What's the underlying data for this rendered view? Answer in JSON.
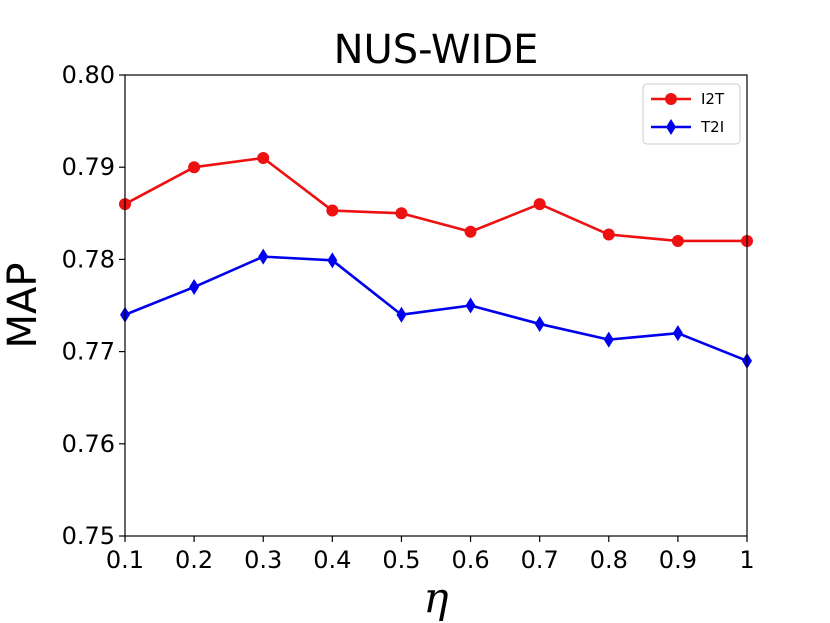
{
  "chart_data": {
    "type": "line",
    "title": "NUS-WIDE",
    "xlabel": "η",
    "ylabel": "MAP",
    "x": [
      0.1,
      0.2,
      0.3,
      0.4,
      0.5,
      0.6,
      0.7,
      0.8,
      0.9,
      1.0
    ],
    "xticks": [
      "0.1",
      "0.2",
      "0.3",
      "0.4",
      "0.5",
      "0.6",
      "0.7",
      "0.8",
      "0.9",
      "1"
    ],
    "yticks": [
      "0.75",
      "0.76",
      "0.77",
      "0.78",
      "0.79",
      "0.80"
    ],
    "xlim": [
      0.1,
      1.0
    ],
    "ylim": [
      0.75,
      0.8
    ],
    "grid": false,
    "legend_position": "top-right",
    "series": [
      {
        "name": "I2T",
        "color": "#ee1111",
        "marker": "circle",
        "values": [
          0.786,
          0.79,
          0.791,
          0.7853,
          0.785,
          0.783,
          0.786,
          0.7827,
          0.782,
          0.782
        ]
      },
      {
        "name": "T2I",
        "color": "#0000ee",
        "marker": "diamond",
        "values": [
          0.774,
          0.777,
          0.7803,
          0.7799,
          0.774,
          0.775,
          0.773,
          0.7713,
          0.772,
          0.769
        ]
      }
    ]
  }
}
